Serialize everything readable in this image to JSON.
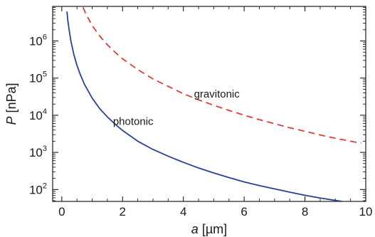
{
  "chart_data": {
    "type": "line",
    "xlabel": {
      "var": "a",
      "unit": " [µm]"
    },
    "ylabel": {
      "var": "P",
      "unit": " [nPa]"
    },
    "xlim": [
      -0.3,
      10
    ],
    "ylim_log10": [
      1.68,
      6.93
    ],
    "yscale": "log",
    "grid": false,
    "x_ticks": [
      {
        "value": 0,
        "label": "0"
      },
      {
        "value": 2,
        "label": "2"
      },
      {
        "value": 4,
        "label": "4"
      },
      {
        "value": 6,
        "label": "6"
      },
      {
        "value": 8,
        "label": "8"
      },
      {
        "value": 10,
        "label": "10"
      }
    ],
    "y_ticks": [
      {
        "value": 100,
        "base": "10",
        "exp": "2"
      },
      {
        "value": 1000,
        "base": "10",
        "exp": "3"
      },
      {
        "value": 10000,
        "base": "10",
        "exp": "4"
      },
      {
        "value": 100000,
        "base": "10",
        "exp": "5"
      },
      {
        "value": 1000000,
        "base": "10",
        "exp": "6"
      }
    ],
    "series": [
      {
        "name": "photonic",
        "color": "#2b3f9a",
        "dash": "solid",
        "points": [
          [
            0.17,
            6200000
          ],
          [
            0.2,
            3500000
          ],
          [
            0.25,
            1800000
          ],
          [
            0.3,
            1000000
          ],
          [
            0.4,
            420000
          ],
          [
            0.5,
            220000
          ],
          [
            0.6,
            130000
          ],
          [
            0.75,
            67000
          ],
          [
            1.0,
            29000
          ],
          [
            1.25,
            15000
          ],
          [
            1.5,
            9000
          ],
          [
            1.75,
            5800
          ],
          [
            2.0,
            3900
          ],
          [
            2.5,
            2000
          ],
          [
            3.0,
            1200
          ],
          [
            3.5,
            790
          ],
          [
            4.0,
            540
          ],
          [
            4.5,
            380
          ],
          [
            5.0,
            280
          ],
          [
            5.5,
            210
          ],
          [
            6.0,
            160
          ],
          [
            6.5,
            128
          ],
          [
            7.0,
            104
          ],
          [
            7.5,
            85
          ],
          [
            8.0,
            70
          ],
          [
            8.5,
            59
          ],
          [
            9.0,
            51
          ],
          [
            9.5,
            44
          ],
          [
            9.85,
            40
          ]
        ]
      },
      {
        "name": "gravitonic",
        "color": "#e03b3b",
        "dash": "dashed",
        "points": [
          [
            0.7,
            8000000
          ],
          [
            0.8,
            5200000
          ],
          [
            1.0,
            2600000
          ],
          [
            1.25,
            1350000
          ],
          [
            1.5,
            790000
          ],
          [
            1.75,
            500000
          ],
          [
            2.0,
            330000
          ],
          [
            2.5,
            170000
          ],
          [
            3.0,
            95000
          ],
          [
            3.5,
            60000
          ],
          [
            4.0,
            38000
          ],
          [
            4.5,
            26000
          ],
          [
            5.0,
            18500
          ],
          [
            5.5,
            13500
          ],
          [
            6.0,
            10000
          ],
          [
            6.5,
            7600
          ],
          [
            7.0,
            5900
          ],
          [
            7.5,
            4600
          ],
          [
            8.0,
            3700
          ],
          [
            8.5,
            2950
          ],
          [
            9.0,
            2400
          ],
          [
            9.5,
            2000
          ],
          [
            9.85,
            1760
          ]
        ]
      }
    ],
    "annotations": [
      {
        "text": "gravitonic",
        "x": 5.1,
        "y": 30000
      },
      {
        "text": "photonic",
        "x": 2.35,
        "y": 5500
      }
    ]
  }
}
